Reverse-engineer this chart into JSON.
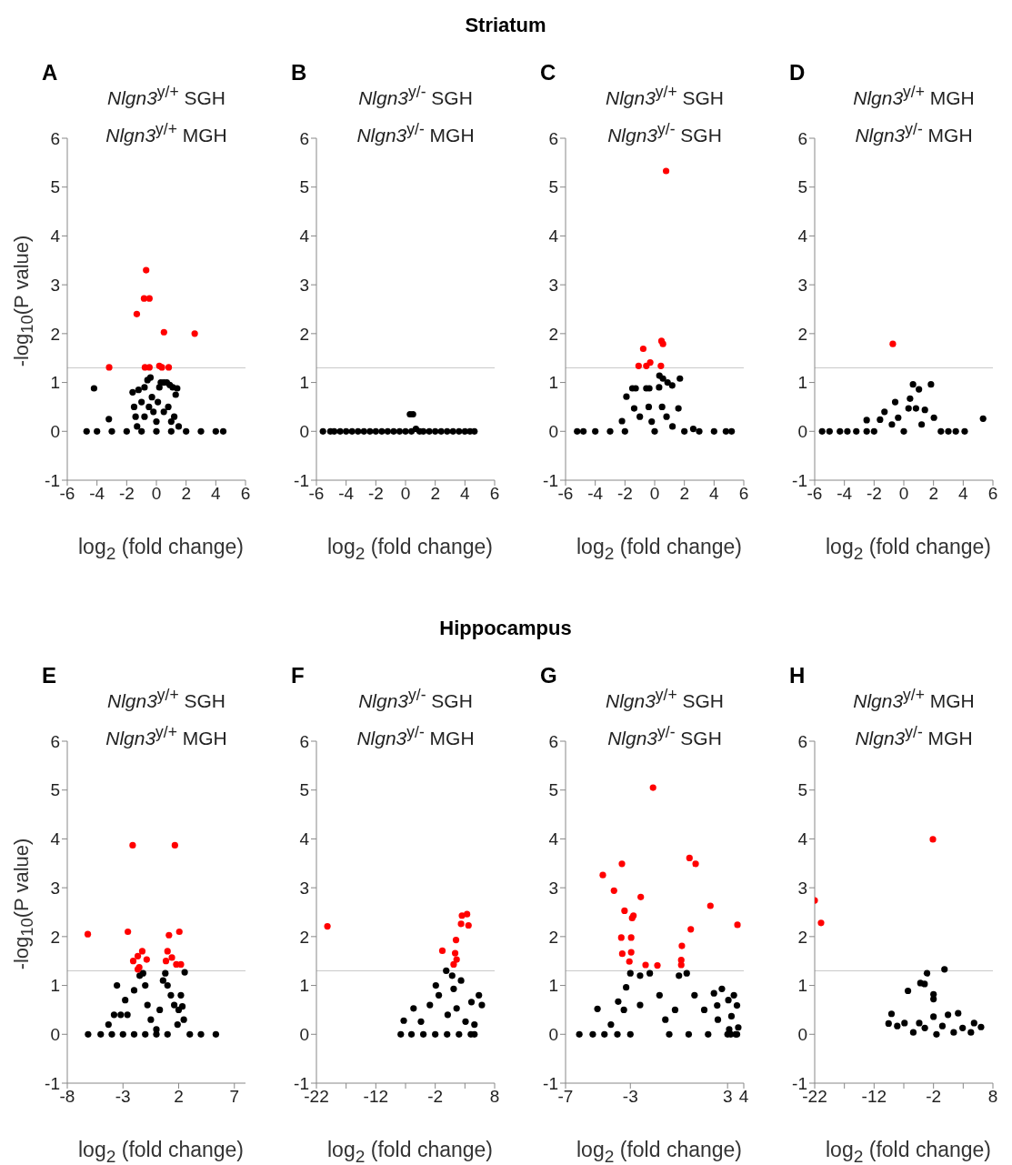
{
  "chart_data": [
    {
      "type": "scatter",
      "title": "Nlgn3$^{y/+}$ SGH",
      "subtitle": "Nlgn3$^{y/+}$ MGH",
      "xlabel": "log$_{2}$ (fold change)",
      "ylabel": "-log$_{10}$(P value)",
      "annotations": [
        "Striatum",
        "A"
      ],
      "xlim": [
        -6,
        6
      ],
      "xticks": [
        -6,
        -4,
        -2,
        0,
        2,
        4,
        6
      ],
      "ylim": [
        -1,
        6
      ],
      "yticks": [
        -1,
        0,
        1,
        2,
        3,
        4,
        5,
        6
      ],
      "marker": "circle",
      "ref_lines": [
        {
          "axis": "y",
          "value": 1.3,
          "color": "#c8c8c8"
        }
      ],
      "series": [
        {
          "color": "#000000",
          "x": [
            -4.7,
            -4.2,
            -4,
            -3.2,
            -3,
            -2,
            -1.6,
            -1.5,
            -1.4,
            -1.3,
            -1.2,
            -1,
            -1,
            -0.8,
            -0.8,
            -0.6,
            -0.5,
            -0.4,
            -0.3,
            -0.2,
            0,
            0,
            0.1,
            0.2,
            0.3,
            0.5,
            0.5,
            0.7,
            0.8,
            0.9,
            1,
            1,
            1.1,
            1.2,
            1.3,
            1.4,
            1.5,
            2,
            3,
            4,
            4.5
          ],
          "values": [
            0,
            0.88,
            0,
            0.25,
            0,
            0,
            0.8,
            0.5,
            0.3,
            0.1,
            0.85,
            0.6,
            0,
            0.9,
            0.3,
            1.05,
            0.5,
            1.1,
            0.7,
            0.4,
            0.2,
            0,
            0.6,
            0.9,
            1,
            1,
            0.4,
            1,
            0.5,
            0.95,
            0.2,
            0,
            0.9,
            0.3,
            0.75,
            0.88,
            0.1,
            0,
            0,
            0,
            0
          ]
        },
        {
          "color": "#ff0000",
          "x": [
            -0.69,
            -0.83,
            -0.47,
            -1.32,
            0.51,
            2.58,
            -3.18,
            -0.77,
            -0.47,
            0.2,
            0.37,
            0.83
          ],
          "values": [
            3.3,
            2.72,
            2.72,
            2.4,
            2.03,
            2,
            1.31,
            1.31,
            1.31,
            1.34,
            1.31,
            1.31
          ]
        }
      ]
    },
    {
      "type": "scatter",
      "title": "Nlgn3$^{y/-}$ SGH",
      "subtitle": "Nlgn3$^{y/-}$ MGH",
      "xlabel": "log$_{2}$ (fold change)",
      "annotations": [
        "B"
      ],
      "xlim": [
        -6,
        6
      ],
      "xticks": [
        -6,
        -4,
        -2,
        0,
        2,
        4,
        6
      ],
      "ylim": [
        -1,
        6
      ],
      "yticks": [
        -1,
        0,
        1,
        2,
        3,
        4,
        5,
        6
      ],
      "marker": "circle",
      "ref_lines": [
        {
          "axis": "y",
          "value": 1.3,
          "color": "#c8c8c8"
        }
      ],
      "series": [
        {
          "color": "#000000",
          "x": [
            -5.56,
            -5.06,
            -4.8,
            -4.4,
            -4,
            -3.6,
            -3.2,
            -2.8,
            -2.4,
            -2,
            -1.6,
            -1.2,
            -0.8,
            -0.4,
            0,
            0.3,
            0.5,
            0.7,
            0.4,
            0.95,
            1.2,
            1.6,
            2,
            2.4,
            2.8,
            3.2,
            3.6,
            4,
            4.34,
            4.64
          ],
          "values": [
            0,
            0,
            0,
            0,
            0,
            0,
            0,
            0,
            0,
            0,
            0,
            0,
            0,
            0,
            0,
            0.35,
            0.35,
            0.05,
            0,
            0,
            0,
            0,
            0,
            0,
            0,
            0,
            0,
            0,
            0,
            0
          ]
        }
      ]
    },
    {
      "type": "scatter",
      "title": "Nlgn3$^{y/+}$ SGH",
      "subtitle": "Nlgn3$^{y/-}$ SGH",
      "xlabel": "log$_{2}$ (fold change)",
      "annotations": [
        "C"
      ],
      "xlim": [
        -6,
        6
      ],
      "xticks": [
        -6,
        -4,
        -2,
        0,
        2,
        4,
        6
      ],
      "ylim": [
        -1,
        6
      ],
      "yticks": [
        -1,
        0,
        1,
        2,
        3,
        4,
        5,
        6
      ],
      "marker": "circle",
      "ref_lines": [
        {
          "axis": "y",
          "value": 1.3,
          "color": "#c8c8c8"
        }
      ],
      "series": [
        {
          "color": "#000000",
          "x": [
            -5.22,
            -4.8,
            -4,
            -3,
            -2.2,
            -2,
            -1.9,
            -1.5,
            -1.38,
            -1.28,
            -1,
            -0.56,
            -0.4,
            -0.36,
            -0.2,
            0,
            0.3,
            0.32,
            0.5,
            0.56,
            0.8,
            0.87,
            1.18,
            1.2,
            1.6,
            1.7,
            2,
            2.6,
            3,
            4,
            4.8,
            5.18
          ],
          "values": [
            0,
            0,
            0,
            0,
            0.21,
            0,
            0.71,
            0.88,
            0.47,
            0.88,
            0.3,
            0.88,
            0.5,
            0.88,
            0.2,
            0,
            0.9,
            1.14,
            0.5,
            1.08,
            0.3,
            1,
            0.94,
            0.1,
            0.47,
            1.08,
            0,
            0.05,
            0,
            0,
            0,
            0
          ]
        },
        {
          "color": "#ff0000",
          "x": [
            0.77,
            -0.77,
            0.46,
            0.56,
            -1.08,
            -0.56,
            -0.3,
            0.42
          ],
          "values": [
            5.33,
            1.69,
            1.85,
            1.79,
            1.34,
            1.34,
            1.41,
            1.34
          ]
        }
      ]
    },
    {
      "type": "scatter",
      "title": "Nlgn3$^{y/+}$ MGH",
      "subtitle": "Nlgn3$^{y/-}$ MGH",
      "xlabel": "log$_{2}$ (fold change)",
      "annotations": [
        "D"
      ],
      "xlim": [
        -6,
        6
      ],
      "xticks": [
        -6,
        -4,
        -2,
        0,
        2,
        4,
        6
      ],
      "ylim": [
        -1,
        6
      ],
      "yticks": [
        -1,
        0,
        1,
        2,
        3,
        4,
        5,
        6
      ],
      "marker": "circle",
      "ref_lines": [
        {
          "axis": "y",
          "value": 1.3,
          "color": "#c8c8c8"
        }
      ],
      "series": [
        {
          "color": "#000000",
          "x": [
            -5.5,
            -5,
            -4.3,
            -3.8,
            -3.2,
            -2.5,
            -2.5,
            -2,
            -1.6,
            -1.3,
            -0.8,
            -0.58,
            -0.38,
            0,
            0.32,
            0.42,
            0.62,
            0.82,
            1.02,
            1.2,
            1.42,
            1.83,
            2.03,
            2.5,
            3,
            3.5,
            4.1,
            5.34
          ],
          "values": [
            0,
            0,
            0,
            0,
            0,
            0,
            0.23,
            0,
            0.24,
            0.4,
            0.14,
            0.6,
            0.28,
            0,
            0.47,
            0.67,
            0.96,
            0.47,
            0.86,
            0.14,
            0.44,
            0.96,
            0.28,
            0,
            0,
            0,
            0,
            0.26
          ]
        },
        {
          "color": "#ff0000",
          "x": [
            -0.74
          ],
          "values": [
            1.79
          ]
        }
      ]
    },
    {
      "type": "scatter",
      "title": "Nlgn3$^{y/+}$ SGH",
      "subtitle": "Nlgn3$^{y/+}$ MGH",
      "xlabel": "log$_{2}$ (fold change)",
      "ylabel": "-log$_{10}$(P value)",
      "annotations": [
        "Hippocampus",
        "E"
      ],
      "xlim": [
        -8,
        8
      ],
      "xticks": [
        -8,
        -3,
        2,
        7
      ],
      "ylim": [
        -1,
        6
      ],
      "yticks": [
        -1,
        0,
        1,
        2,
        3,
        4,
        5,
        6
      ],
      "marker": "circle",
      "ref_lines": [
        {
          "axis": "y",
          "value": 1.3,
          "color": "#c8c8c8"
        }
      ],
      "series": [
        {
          "color": "#000000",
          "x": [
            -6.13,
            -5,
            -4.3,
            -4,
            -3.8,
            -3.54,
            -3.2,
            -3,
            -2.8,
            -2.6,
            -2,
            -2,
            -1.5,
            -1.2,
            -1,
            -1,
            -0.8,
            -0.5,
            0,
            0,
            0.3,
            0.6,
            0.8,
            1,
            1,
            1.3,
            1.6,
            1.9,
            2,
            2.2,
            2.33,
            2.46,
            2.54,
            3,
            4,
            5.34
          ],
          "values": [
            0,
            0,
            0.2,
            0,
            0.4,
            1,
            0.4,
            0,
            0.7,
            0.4,
            0.9,
            0,
            1.2,
            1.25,
            1,
            0,
            0.6,
            0.3,
            0.1,
            0,
            0.5,
            1.1,
            1.25,
            1,
            0,
            0.8,
            0.6,
            0.2,
            0.5,
            0.8,
            0.57,
            0.3,
            1.27,
            0,
            0,
            0
          ]
        },
        {
          "color": "#ff0000",
          "x": [
            -6.16,
            -2.56,
            -2.13,
            1.66,
            1.13,
            2.06,
            -2.08,
            -1.67,
            -1.27,
            -0.87,
            -1.54,
            1,
            0.86,
            1.39,
            1.79,
            2.2,
            -1.67
          ],
          "values": [
            2.05,
            2.1,
            3.87,
            3.87,
            2.03,
            2.1,
            1.5,
            1.6,
            1.7,
            1.53,
            1.37,
            1.7,
            1.5,
            1.57,
            1.43,
            1.43,
            1.33
          ]
        }
      ]
    },
    {
      "type": "scatter",
      "title": "Nlgn3$^{y/-}$ SGH",
      "subtitle": "Nlgn3$^{y/-}$ MGH",
      "xlabel": "log$_{2}$ (fold change)",
      "annotations": [
        "F"
      ],
      "xlim": [
        -22,
        8
      ],
      "xticks": [
        -22,
        {
          "value": -17,
          "label": null
        },
        -12,
        {
          "value": -7,
          "label": null
        },
        -2,
        {
          "value": 3,
          "label": null
        },
        8
      ],
      "ylim": [
        -1,
        6
      ],
      "yticks": [
        -1,
        0,
        1,
        2,
        3,
        4,
        5,
        6
      ],
      "marker": "circle",
      "ref_lines": [
        {
          "axis": "y",
          "value": 1.3,
          "color": "#c8c8c8"
        }
      ],
      "series": [
        {
          "color": "#000000",
          "x": [
            -7.8,
            -7.3,
            -6,
            -5.65,
            -4.4,
            -4,
            -2.9,
            -2,
            -1.9,
            -1.4,
            -0.15,
            0,
            0.1,
            0.85,
            1.1,
            1.6,
            2,
            2.35,
            3.1,
            4,
            4.1,
            4.6,
            4.6,
            5.35,
            5.85
          ],
          "values": [
            0,
            0.28,
            0,
            0.53,
            0.26,
            0,
            0.6,
            0,
            1,
            0.8,
            1.3,
            0,
            0.4,
            1.2,
            0.93,
            0.53,
            0,
            1.1,
            0.26,
            0,
            0.66,
            0.2,
            0,
            0.8,
            0.6
          ]
        },
        {
          "color": "#ff0000",
          "x": [
            -20.15,
            2.5,
            3.35,
            2.35,
            3.6,
            1.5,
            -0.8,
            1.35,
            1.6,
            1.1
          ],
          "values": [
            2.21,
            2.43,
            2.46,
            2.26,
            2.23,
            1.93,
            1.71,
            1.66,
            1.53,
            1.43
          ]
        }
      ]
    },
    {
      "type": "scatter",
      "title": "Nlgn3$^{y/+}$ SGH",
      "subtitle": "Nlgn3$^{y/-}$ SGH",
      "xlabel": "log$_{2}$ (fold change)",
      "annotations": [
        "G"
      ],
      "xlim": [
        -7,
        4
      ],
      "xticks": [
        -7,
        -3,
        3,
        4
      ],
      "ylim": [
        -1,
        6
      ],
      "yticks": [
        -1,
        0,
        1,
        2,
        3,
        4,
        5,
        6
      ],
      "marker": "circle",
      "ref_lines": [
        {
          "axis": "y",
          "value": 1.3,
          "color": "#c8c8c8"
        }
      ],
      "series": [
        {
          "color": "#000000",
          "x": [
            -6.15,
            -5.32,
            -5.03,
            -4.6,
            -4.2,
            -3.8,
            -3.75,
            -3.4,
            -3.26,
            -3,
            -3,
            -2.4,
            -2.4,
            -1.8,
            -1.2,
            -0.84,
            -0.6,
            -0.24,
            0,
            0.48,
            0.6,
            0.96,
            1.56,
            1.8,
            2.16,
            2.36,
            2.4,
            2.65,
            3,
            3.05,
            3.1,
            3.2,
            3.24,
            3.39,
            3.5,
            3.58,
            3.58,
            3.66
          ],
          "values": [
            0,
            0,
            0.52,
            0,
            0.2,
            0,
            0.67,
            0.5,
            0.96,
            1.25,
            0,
            1.2,
            0.6,
            1.25,
            0.8,
            0.3,
            0,
            0.5,
            1.2,
            1.25,
            0,
            0.8,
            0.5,
            0,
            0.84,
            0.59,
            0.3,
            0.93,
            0,
            0.7,
            0.1,
            0,
            0.37,
            0.8,
            0,
            0.59,
            0,
            0.14
          ]
        },
        {
          "color": "#ff0000",
          "x": [
            -1.6,
            -4.7,
            -3.52,
            -4.01,
            -3.36,
            -2.81,
            -2.89,
            -2.36,
            -3.56,
            -2.95,
            -3.5,
            -2.95,
            -3.06,
            -2.06,
            -1.33,
            0.65,
            1.03,
            1.94,
            0.73,
            0.18,
            0.14,
            0.14,
            3.61
          ],
          "values": [
            5.05,
            3.26,
            3.49,
            2.94,
            2.53,
            2.43,
            2.38,
            2.81,
            1.98,
            1.98,
            1.65,
            1.68,
            1.49,
            1.42,
            1.41,
            3.61,
            3.49,
            2.63,
            2.15,
            1.81,
            1.52,
            1.42,
            2.24
          ]
        }
      ]
    },
    {
      "type": "scatter",
      "title": "Nlgn3$^{y/+}$ MGH",
      "subtitle": "Nlgn3$^{y/-}$ MGH",
      "xlabel": "log$_{2}$ (fold change)",
      "annotations": [
        "H"
      ],
      "xlim": [
        -22,
        8
      ],
      "xticks": [
        -22,
        {
          "value": -17,
          "label": null
        },
        -12,
        {
          "value": -7,
          "label": null
        },
        -2,
        {
          "value": 3,
          "label": null
        },
        8
      ],
      "ylim": [
        -1,
        6
      ],
      "yticks": [
        -1,
        0,
        1,
        2,
        3,
        4,
        5,
        6
      ],
      "marker": "circle",
      "ref_lines": [
        {
          "axis": "y",
          "value": 1.3,
          "color": "#c8c8c8"
        }
      ],
      "series": [
        {
          "color": "#000000",
          "x": [
            -0.15,
            -3.1,
            -4.2,
            -3.5,
            -6.3,
            -2,
            -2,
            -9.07,
            -9.56,
            -8.1,
            -6.88,
            -5.4,
            -4.4,
            -3.46,
            -2,
            -1.5,
            -0.5,
            0.44,
            1.4,
            2.15,
            2.9,
            4.3,
            4.83,
            6
          ],
          "values": [
            1.33,
            1.25,
            1.05,
            1.03,
            0.89,
            0.82,
            0.72,
            0.42,
            0.22,
            0.17,
            0.23,
            0.04,
            0.23,
            0.13,
            0.36,
            0,
            0.17,
            0.4,
            0.04,
            0.43,
            0.13,
            0.04,
            0.23,
            0.15
          ]
        },
        {
          "color": "#ff0000",
          "x": [
            -22,
            -20.93,
            -2.1
          ],
          "values": [
            2.74,
            2.28,
            3.99
          ]
        }
      ]
    }
  ]
}
